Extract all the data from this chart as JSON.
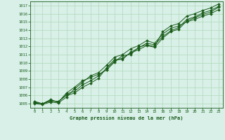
{
  "xlabel": "Graphe pression niveau de la mer (hPa)",
  "xlim": [
    -0.5,
    23.5
  ],
  "ylim": [
    1004.5,
    1017.5
  ],
  "yticks": [
    1005,
    1006,
    1007,
    1008,
    1009,
    1010,
    1011,
    1012,
    1013,
    1014,
    1015,
    1016,
    1017
  ],
  "xticks": [
    0,
    1,
    2,
    3,
    4,
    5,
    6,
    7,
    8,
    9,
    10,
    11,
    12,
    13,
    14,
    15,
    16,
    17,
    18,
    19,
    20,
    21,
    22,
    23
  ],
  "bg_color": "#d8f0e8",
  "line_color": "#1a5c1a",
  "grid_color": "#b0d8b8",
  "series": [
    [
      1005.2,
      1005.0,
      1005.3,
      1005.3,
      1006.0,
      1006.3,
      1007.0,
      1007.5,
      1008.1,
      1009.4,
      1010.4,
      1010.4,
      1011.3,
      1011.8,
      1012.4,
      1012.2,
      1013.2,
      1013.9,
      1014.3,
      1015.3,
      1015.6,
      1016.1,
      1016.4,
      1016.9
    ],
    [
      1005.3,
      1005.0,
      1005.4,
      1005.2,
      1006.2,
      1006.5,
      1007.3,
      1007.8,
      1008.4,
      1009.3,
      1010.2,
      1010.6,
      1011.2,
      1011.6,
      1012.1,
      1011.9,
      1013.0,
      1013.8,
      1014.1,
      1015.1,
      1015.5,
      1015.9,
      1016.2,
      1016.8
    ],
    [
      1005.0,
      1004.9,
      1005.2,
      1005.1,
      1005.8,
      1006.8,
      1007.6,
      1008.4,
      1008.8,
      1009.7,
      1010.7,
      1011.0,
      1011.7,
      1012.1,
      1012.7,
      1012.4,
      1013.5,
      1014.2,
      1014.5,
      1015.0,
      1015.3,
      1015.7,
      1016.0,
      1016.5
    ],
    [
      1005.1,
      1005.0,
      1005.5,
      1005.2,
      1006.3,
      1007.0,
      1007.8,
      1008.2,
      1008.6,
      1009.1,
      1010.1,
      1010.9,
      1011.0,
      1011.9,
      1012.2,
      1012.0,
      1013.8,
      1014.5,
      1014.8,
      1015.7,
      1016.0,
      1016.4,
      1016.7,
      1017.2
    ]
  ]
}
